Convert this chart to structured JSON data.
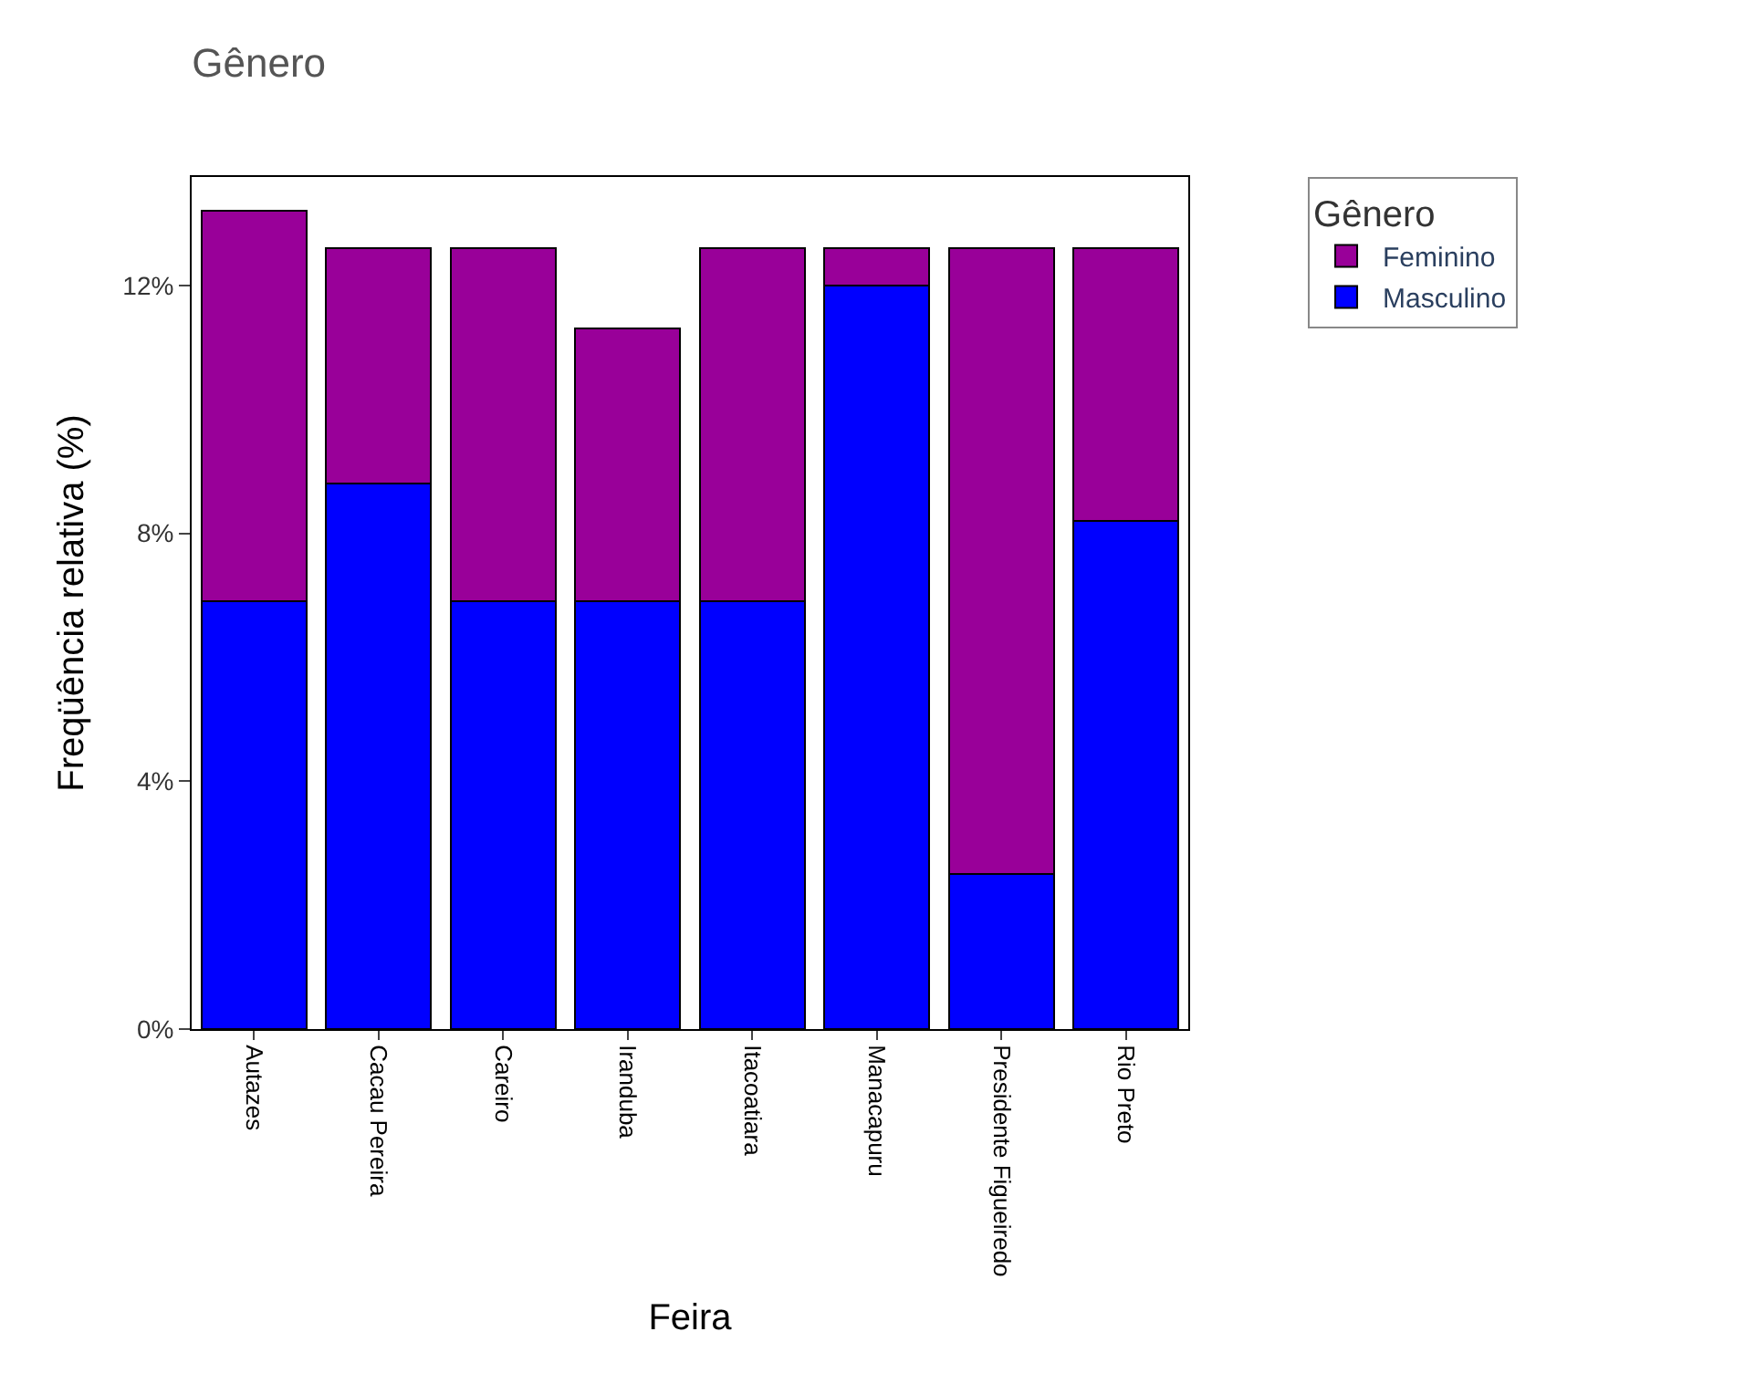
{
  "chart_data": {
    "type": "bar",
    "title": "Gênero",
    "xlabel": "Feira",
    "ylabel": "Freqüência relativa (%)",
    "legend_title": "Gênero",
    "stacked": true,
    "legend": "top right",
    "categories": [
      "Autazes",
      "Cacau Pereira",
      "Careiro",
      "Iranduba",
      "Itacoatiara",
      "Manacapuru",
      "Presidente Figueiredo",
      "Rio Preto"
    ],
    "series": [
      {
        "name": "Masculino",
        "color": "#0000ff",
        "values": [
          6.9,
          8.8,
          6.9,
          6.9,
          6.9,
          12.0,
          2.5,
          8.2
        ]
      },
      {
        "name": "Feminino",
        "color": "#990099",
        "values": [
          6.3,
          3.8,
          5.7,
          4.4,
          5.7,
          0.6,
          10.1,
          4.4
        ]
      }
    ],
    "ylim": [
      0,
      13.75
    ],
    "yticks": [
      {
        "value": 0,
        "label": "0%"
      },
      {
        "value": 4,
        "label": "4%"
      },
      {
        "value": 8,
        "label": "8%"
      },
      {
        "value": 12,
        "label": "12%"
      }
    ]
  }
}
